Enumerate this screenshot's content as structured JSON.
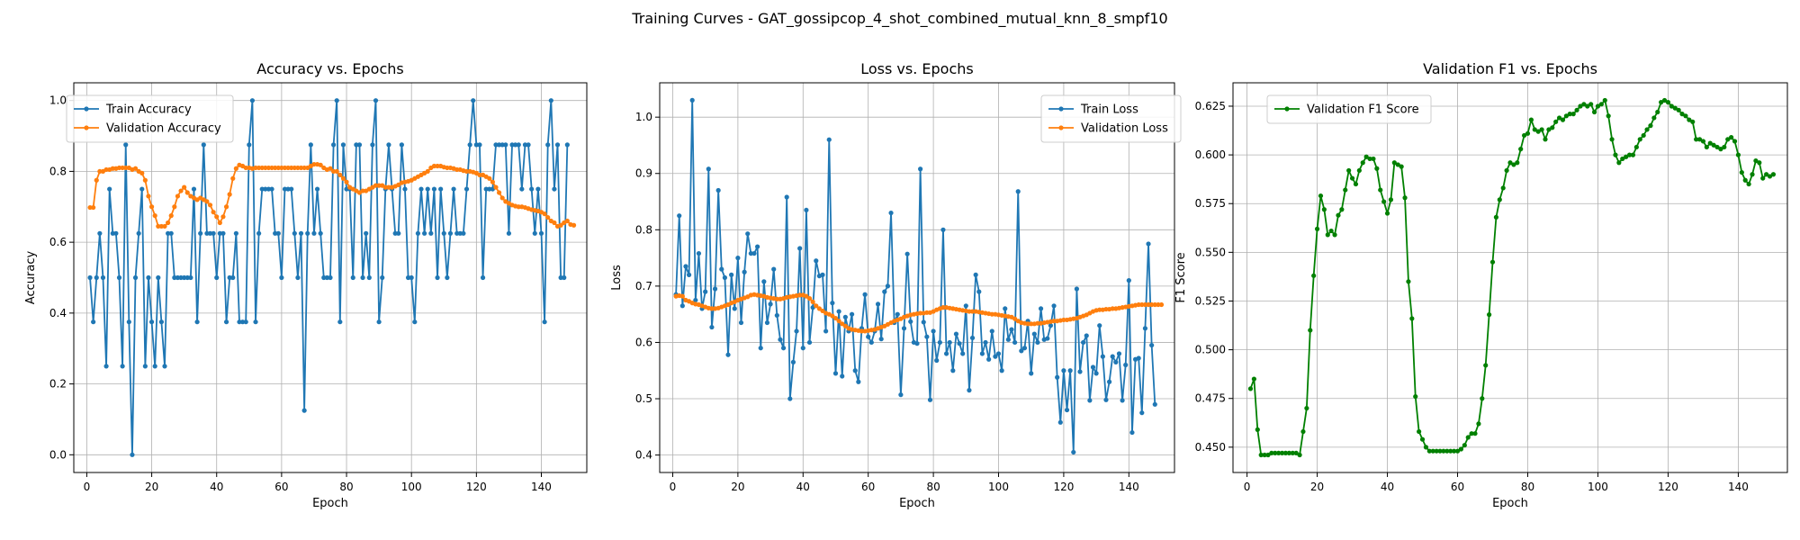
{
  "figure": {
    "suptitle": "Training Curves - GAT_gossipcop_4_shot_combined_mutual_knn_8_smpf10"
  },
  "chart_data": [
    {
      "type": "line",
      "title": "Accuracy vs. Epochs",
      "xlabel": "Epoch",
      "ylabel": "Accuracy",
      "xlim": [
        -4,
        154
      ],
      "ylim": [
        -0.05,
        1.05
      ],
      "xticks": [
        0,
        20,
        40,
        60,
        80,
        100,
        120,
        140
      ],
      "yticks": [
        0.0,
        0.2,
        0.4,
        0.6,
        0.8,
        1.0
      ],
      "ytick_labels": [
        "0.0",
        "0.2",
        "0.4",
        "0.6",
        "0.8",
        "1.0"
      ],
      "grid": true,
      "legend": "upper-left",
      "series": [
        {
          "name": "Train Accuracy",
          "color": "#1f77b4",
          "x_start": 1,
          "values": [
            0.5,
            0.375,
            0.5,
            0.625,
            0.5,
            0.25,
            0.75,
            0.625,
            0.625,
            0.5,
            0.25,
            0.875,
            0.375,
            0.0,
            0.5,
            0.625,
            0.75,
            0.25,
            0.5,
            0.375,
            0.25,
            0.5,
            0.375,
            0.25,
            0.625,
            0.625,
            0.5,
            0.5,
            0.5,
            0.5,
            0.5,
            0.5,
            0.75,
            0.375,
            0.625,
            0.875,
            0.625,
            0.625,
            0.625,
            0.5,
            0.625,
            0.625,
            0.375,
            0.5,
            0.5,
            0.625,
            0.375,
            0.375,
            0.375,
            0.875,
            1.0,
            0.375,
            0.625,
            0.75,
            0.75,
            0.75,
            0.75,
            0.625,
            0.625,
            0.5,
            0.75,
            0.75,
            0.75,
            0.625,
            0.5,
            0.625,
            0.125,
            0.625,
            0.875,
            0.625,
            0.75,
            0.625,
            0.5,
            0.5,
            0.5,
            0.875,
            1.0,
            0.375,
            0.875,
            0.75,
            0.75,
            0.5,
            0.875,
            0.875,
            0.5,
            0.625,
            0.5,
            0.875,
            1.0,
            0.375,
            0.5,
            0.75,
            0.875,
            0.75,
            0.625,
            0.625,
            0.875,
            0.75,
            0.5,
            0.5,
            0.375,
            0.625,
            0.75,
            0.625,
            0.75,
            0.625,
            0.75,
            0.5,
            0.75,
            0.625,
            0.5,
            0.625,
            0.75,
            0.625,
            0.625,
            0.625,
            0.75,
            0.875,
            1.0,
            0.875,
            0.875,
            0.5,
            0.75,
            0.75,
            0.75,
            0.875,
            0.875,
            0.875,
            0.875,
            0.625,
            0.875,
            0.875,
            0.875,
            0.75,
            0.875,
            0.875,
            0.75,
            0.625,
            0.75,
            0.625,
            0.375,
            0.875,
            1.0,
            0.75,
            0.875,
            0.5,
            0.5,
            0.875
          ]
        },
        {
          "name": "Validation Accuracy",
          "color": "#ff7f0e",
          "x_start": 1,
          "values": [
            0.698,
            0.698,
            0.775,
            0.8,
            0.8,
            0.805,
            0.805,
            0.808,
            0.808,
            0.81,
            0.81,
            0.81,
            0.81,
            0.805,
            0.808,
            0.8,
            0.795,
            0.775,
            0.73,
            0.7,
            0.675,
            0.645,
            0.645,
            0.645,
            0.655,
            0.675,
            0.7,
            0.73,
            0.745,
            0.755,
            0.74,
            0.73,
            0.725,
            0.72,
            0.725,
            0.72,
            0.715,
            0.705,
            0.685,
            0.672,
            0.655,
            0.672,
            0.7,
            0.735,
            0.78,
            0.808,
            0.818,
            0.815,
            0.81,
            0.81,
            0.808,
            0.81,
            0.81,
            0.81,
            0.81,
            0.81,
            0.81,
            0.81,
            0.81,
            0.81,
            0.81,
            0.81,
            0.81,
            0.81,
            0.81,
            0.81,
            0.81,
            0.81,
            0.815,
            0.82,
            0.82,
            0.818,
            0.81,
            0.805,
            0.808,
            0.8,
            0.8,
            0.79,
            0.78,
            0.77,
            0.755,
            0.75,
            0.745,
            0.74,
            0.745,
            0.745,
            0.75,
            0.755,
            0.76,
            0.76,
            0.76,
            0.755,
            0.755,
            0.755,
            0.758,
            0.762,
            0.768,
            0.77,
            0.772,
            0.775,
            0.78,
            0.785,
            0.79,
            0.795,
            0.8,
            0.81,
            0.815,
            0.815,
            0.815,
            0.812,
            0.81,
            0.81,
            0.808,
            0.805,
            0.805,
            0.802,
            0.8,
            0.8,
            0.798,
            0.795,
            0.79,
            0.79,
            0.785,
            0.78,
            0.77,
            0.755,
            0.74,
            0.725,
            0.715,
            0.71,
            0.705,
            0.702,
            0.7,
            0.7,
            0.698,
            0.695,
            0.692,
            0.69,
            0.688,
            0.685,
            0.68,
            0.67,
            0.66,
            0.655,
            0.645,
            0.648,
            0.655,
            0.66,
            0.65,
            0.648
          ]
        }
      ]
    },
    {
      "type": "line",
      "title": "Loss vs. Epochs",
      "xlabel": "Epoch",
      "ylabel": "Loss",
      "xlim": [
        -4,
        154
      ],
      "ylim": [
        0.369,
        1.061
      ],
      "xticks": [
        0,
        20,
        40,
        60,
        80,
        100,
        120,
        140
      ],
      "yticks": [
        0.4,
        0.5,
        0.6,
        0.7,
        0.8,
        0.9,
        1.0
      ],
      "ytick_labels": [
        "0.4",
        "0.5",
        "0.6",
        "0.7",
        "0.8",
        "0.9",
        "1.0"
      ],
      "grid": true,
      "legend": "upper-right",
      "series": [
        {
          "name": "Train Loss",
          "color": "#1f77b4",
          "x_start": 1,
          "values": [
            0.685,
            0.825,
            0.665,
            0.735,
            0.72,
            1.03,
            0.675,
            0.758,
            0.66,
            0.69,
            0.908,
            0.627,
            0.695,
            0.87,
            0.73,
            0.715,
            0.578,
            0.72,
            0.66,
            0.75,
            0.635,
            0.725,
            0.793,
            0.758,
            0.758,
            0.77,
            0.59,
            0.708,
            0.635,
            0.668,
            0.73,
            0.648,
            0.605,
            0.59,
            0.858,
            0.5,
            0.565,
            0.62,
            0.767,
            0.59,
            0.835,
            0.6,
            0.662,
            0.745,
            0.718,
            0.72,
            0.62,
            0.96,
            0.67,
            0.545,
            0.655,
            0.54,
            0.645,
            0.62,
            0.65,
            0.55,
            0.53,
            0.625,
            0.685,
            0.61,
            0.6,
            0.62,
            0.668,
            0.606,
            0.69,
            0.7,
            0.83,
            0.635,
            0.65,
            0.507,
            0.625,
            0.757,
            0.637,
            0.6,
            0.598,
            0.908,
            0.636,
            0.61,
            0.498,
            0.62,
            0.568,
            0.6,
            0.8,
            0.58,
            0.6,
            0.55,
            0.615,
            0.598,
            0.58,
            0.665,
            0.515,
            0.608,
            0.72,
            0.69,
            0.58,
            0.6,
            0.57,
            0.62,
            0.575,
            0.58,
            0.55,
            0.66,
            0.605,
            0.623,
            0.6,
            0.868,
            0.585,
            0.59,
            0.638,
            0.545,
            0.615,
            0.6,
            0.66,
            0.605,
            0.607,
            0.63,
            0.665,
            0.538,
            0.458,
            0.55,
            0.48,
            0.55,
            0.405,
            0.695,
            0.548,
            0.6,
            0.612,
            0.497,
            0.556,
            0.545,
            0.63,
            0.575,
            0.498,
            0.53,
            0.575,
            0.565,
            0.58,
            0.497,
            0.56,
            0.71,
            0.44,
            0.57,
            0.572,
            0.475,
            0.625,
            0.775,
            0.595,
            0.49
          ]
        },
        {
          "name": "Validation Loss",
          "color": "#ff7f0e",
          "x_start": 1,
          "values": [
            0.682,
            0.683,
            0.682,
            0.675,
            0.673,
            0.67,
            0.668,
            0.667,
            0.665,
            0.663,
            0.661,
            0.66,
            0.66,
            0.661,
            0.663,
            0.665,
            0.667,
            0.67,
            0.672,
            0.675,
            0.677,
            0.679,
            0.681,
            0.684,
            0.685,
            0.684,
            0.683,
            0.682,
            0.68,
            0.679,
            0.678,
            0.677,
            0.677,
            0.678,
            0.68,
            0.681,
            0.682,
            0.683,
            0.684,
            0.684,
            0.682,
            0.678,
            0.672,
            0.665,
            0.66,
            0.656,
            0.652,
            0.65,
            0.647,
            0.643,
            0.638,
            0.633,
            0.629,
            0.625,
            0.623,
            0.622,
            0.621,
            0.62,
            0.62,
            0.621,
            0.622,
            0.623,
            0.625,
            0.627,
            0.629,
            0.632,
            0.635,
            0.638,
            0.64,
            0.642,
            0.645,
            0.647,
            0.649,
            0.65,
            0.651,
            0.652,
            0.652,
            0.653,
            0.653,
            0.655,
            0.658,
            0.66,
            0.662,
            0.662,
            0.661,
            0.66,
            0.659,
            0.658,
            0.657,
            0.656,
            0.655,
            0.655,
            0.655,
            0.654,
            0.653,
            0.652,
            0.651,
            0.65,
            0.65,
            0.649,
            0.648,
            0.647,
            0.646,
            0.645,
            0.642,
            0.638,
            0.635,
            0.634,
            0.633,
            0.633,
            0.633,
            0.634,
            0.634,
            0.635,
            0.636,
            0.637,
            0.638,
            0.638,
            0.639,
            0.64,
            0.64,
            0.641,
            0.642,
            0.643,
            0.645,
            0.647,
            0.649,
            0.652,
            0.655,
            0.657,
            0.658,
            0.658,
            0.659,
            0.659,
            0.66,
            0.66,
            0.661,
            0.662,
            0.663,
            0.664,
            0.665,
            0.666,
            0.667,
            0.667,
            0.667,
            0.667,
            0.667,
            0.667,
            0.667,
            0.667
          ]
        }
      ]
    },
    {
      "type": "line",
      "title": "Validation F1 vs. Epochs",
      "xlabel": "Epoch",
      "ylabel": "F1 Score",
      "xlim": [
        -4,
        154
      ],
      "ylim": [
        0.437,
        0.637
      ],
      "xticks": [
        0,
        20,
        40,
        60,
        80,
        100,
        120,
        140
      ],
      "yticks": [
        0.45,
        0.475,
        0.5,
        0.525,
        0.55,
        0.575,
        0.6,
        0.625
      ],
      "ytick_labels": [
        "0.450",
        "0.475",
        "0.500",
        "0.525",
        "0.550",
        "0.575",
        "0.600",
        "0.625"
      ],
      "grid": true,
      "legend": "upper-left",
      "series": [
        {
          "name": "Validation F1 Score",
          "color": "#008000",
          "x_start": 1,
          "values": [
            0.48,
            0.485,
            0.459,
            0.446,
            0.446,
            0.446,
            0.447,
            0.447,
            0.447,
            0.447,
            0.447,
            0.447,
            0.447,
            0.447,
            0.446,
            0.458,
            0.47,
            0.51,
            0.538,
            0.562,
            0.579,
            0.572,
            0.559,
            0.561,
            0.559,
            0.569,
            0.572,
            0.582,
            0.592,
            0.588,
            0.585,
            0.592,
            0.596,
            0.599,
            0.598,
            0.598,
            0.593,
            0.582,
            0.576,
            0.57,
            0.577,
            0.596,
            0.595,
            0.594,
            0.578,
            0.535,
            0.516,
            0.476,
            0.458,
            0.454,
            0.45,
            0.448,
            0.448,
            0.448,
            0.448,
            0.448,
            0.448,
            0.448,
            0.448,
            0.448,
            0.449,
            0.451,
            0.455,
            0.457,
            0.457,
            0.462,
            0.475,
            0.492,
            0.518,
            0.545,
            0.568,
            0.577,
            0.583,
            0.592,
            0.596,
            0.595,
            0.596,
            0.603,
            0.61,
            0.611,
            0.618,
            0.613,
            0.612,
            0.613,
            0.608,
            0.613,
            0.614,
            0.617,
            0.619,
            0.618,
            0.62,
            0.621,
            0.621,
            0.623,
            0.625,
            0.626,
            0.625,
            0.626,
            0.622,
            0.625,
            0.626,
            0.628,
            0.62,
            0.608,
            0.6,
            0.596,
            0.598,
            0.599,
            0.6,
            0.6,
            0.604,
            0.608,
            0.61,
            0.613,
            0.615,
            0.619,
            0.622,
            0.627,
            0.628,
            0.627,
            0.625,
            0.624,
            0.623,
            0.621,
            0.62,
            0.618,
            0.617,
            0.608,
            0.608,
            0.607,
            0.604,
            0.606,
            0.605,
            0.604,
            0.603,
            0.604,
            0.608,
            0.609,
            0.607,
            0.6,
            0.591,
            0.587,
            0.585,
            0.59,
            0.597,
            0.596,
            0.588,
            0.59,
            0.589,
            0.59
          ]
        }
      ]
    }
  ]
}
